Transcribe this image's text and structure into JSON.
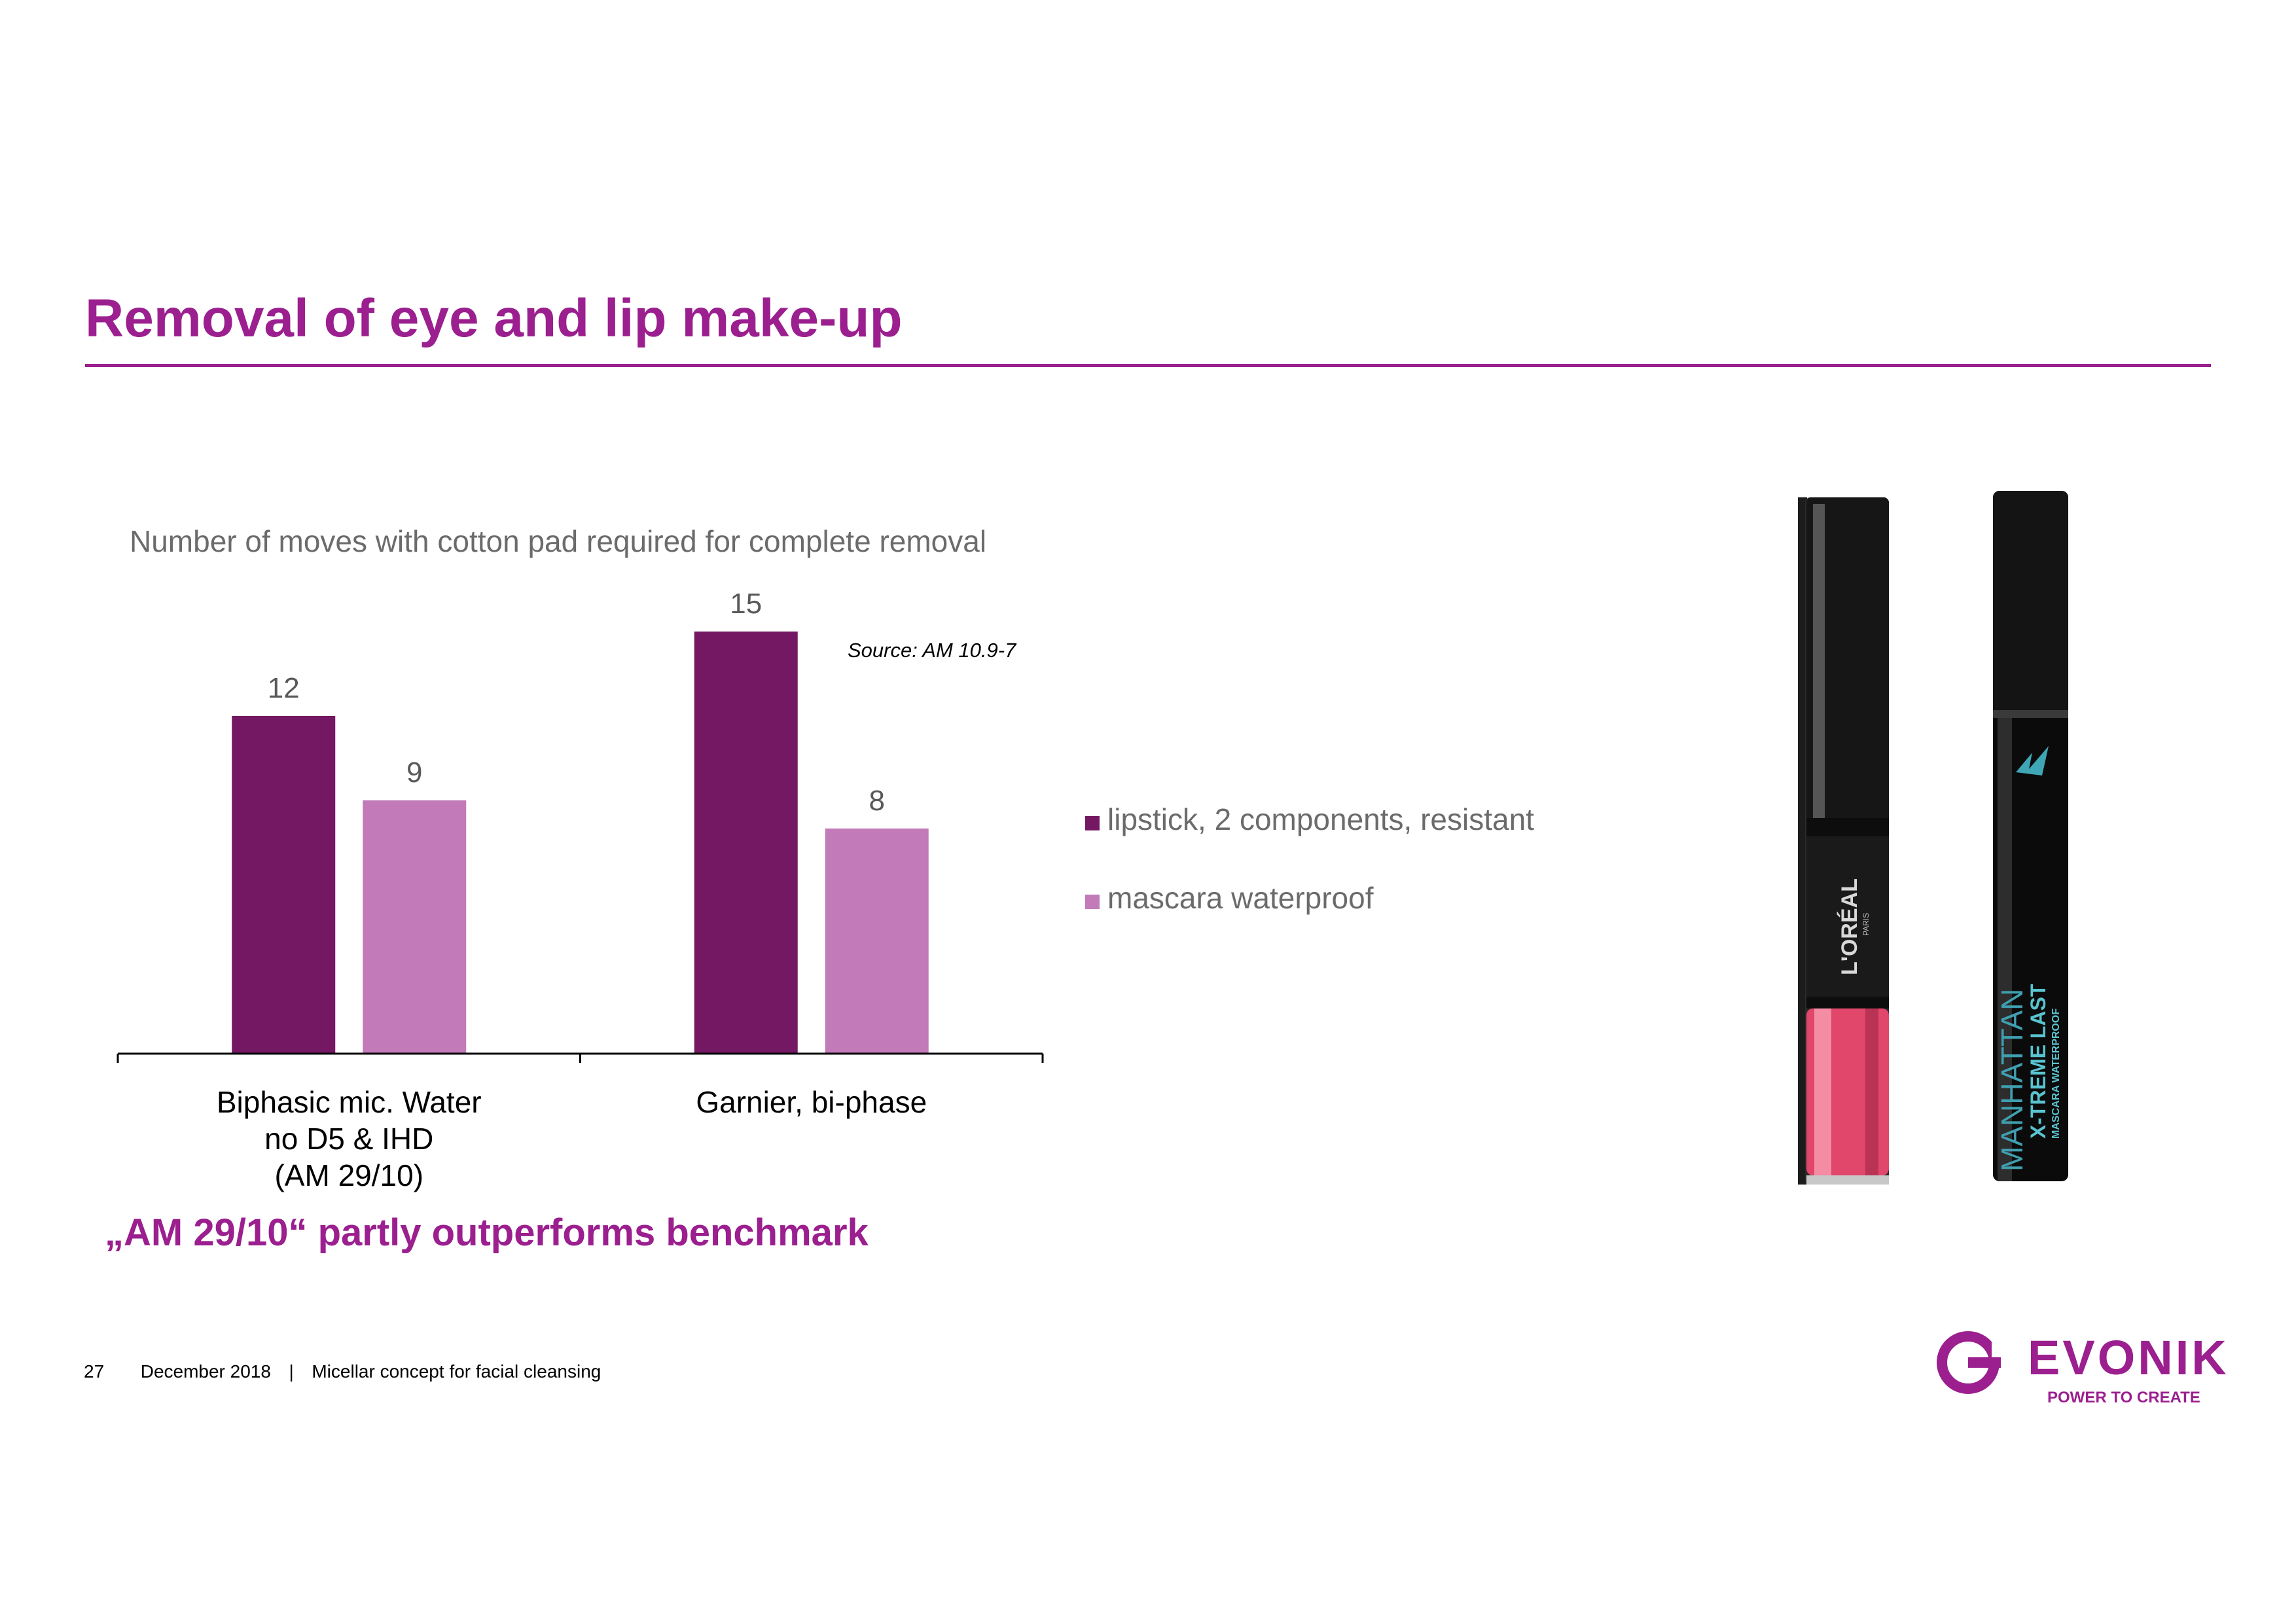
{
  "slide": {
    "title": "Removal of eye and lip make-up",
    "conclusion": "„AM 29/10“ partly outperforms benchmark",
    "footer": {
      "page_number": "27",
      "date": "December 2018",
      "separator": "|",
      "topic": "Micellar concept for facial cleansing"
    },
    "logo": {
      "word": "EVONIK",
      "tagline": "POWER TO CREATE"
    },
    "product_image": {
      "icon": "lipstick-and-mascara-product-photo",
      "lipstick_brand": "L'ORÉAL",
      "lipstick_sub": "PARIS",
      "mascara_brand": "MANHATTAN",
      "mascara_product": "X-TREME LAST",
      "mascara_sub": "MASCARA WATERPROOF"
    }
  },
  "colors": {
    "accent": "#9B1F8F",
    "series_dark": "#751863",
    "series_light": "#C27AB8",
    "text_gray": "#6b6b6b"
  },
  "chart_data": {
    "type": "bar",
    "title": "Number of moves with cotton pad required for complete removal",
    "annotation": "Source: AM 10.9-7",
    "categories": [
      "Biphasic mic. Water\nno D5 & IHD\n(AM 29/10)",
      "Garnier, bi-phase"
    ],
    "series": [
      {
        "name": "lipstick, 2 components, resistant",
        "color": "#751863",
        "values": [
          12,
          15
        ]
      },
      {
        "name": "mascara waterproof",
        "color": "#C27AB8",
        "values": [
          9,
          8
        ]
      }
    ],
    "ylim": [
      0,
      15
    ],
    "grid": false,
    "legend_position": "right",
    "data_labels": true
  }
}
